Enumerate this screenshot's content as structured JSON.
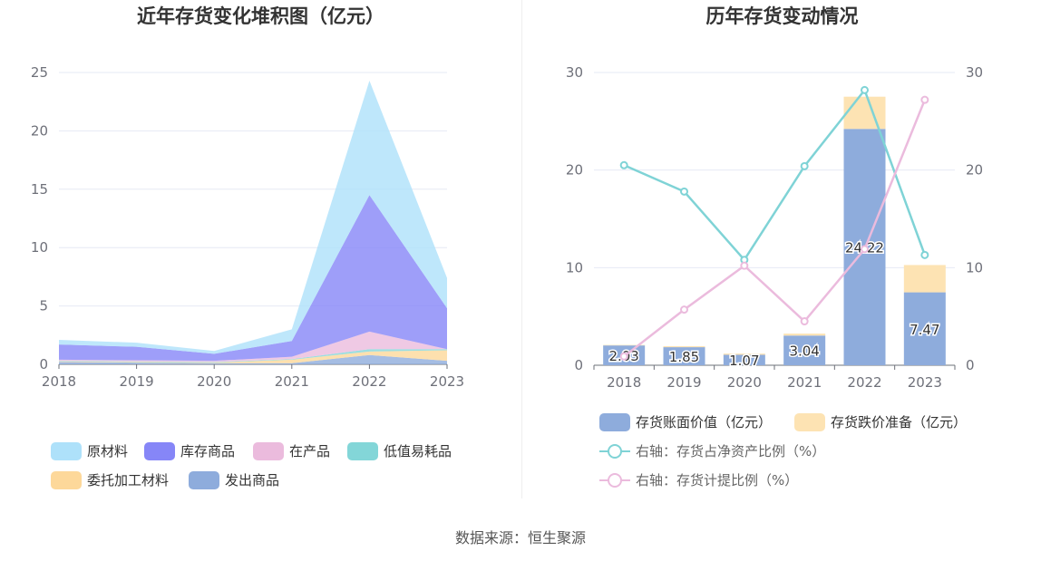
{
  "left_chart": {
    "title": "近年存货变化堆积图（亿元）",
    "chart_data": {
      "type": "area",
      "stacked": true,
      "x": [
        "2018",
        "2019",
        "2020",
        "2021",
        "2022",
        "2023"
      ],
      "ylim": [
        0,
        25
      ],
      "yticks": [
        0,
        5,
        10,
        15,
        20,
        25
      ],
      "grid": true,
      "legend_position": "bottom",
      "series": [
        {
          "name": "发出商品",
          "color": "#8eacdc",
          "values": [
            0.2,
            0.15,
            0.1,
            0.1,
            0.8,
            0.3
          ]
        },
        {
          "name": "委托加工材料",
          "color": "#fdd89a",
          "values": [
            0.05,
            0.05,
            0.05,
            0.3,
            0.3,
            0.9
          ]
        },
        {
          "name": "低值易耗品",
          "color": "#83d6d8",
          "values": [
            0.05,
            0.05,
            0.05,
            0.05,
            0.2,
            0.1
          ]
        },
        {
          "name": "在产品",
          "color": "#ebbbdd",
          "values": [
            0.1,
            0.1,
            0.1,
            0.2,
            1.5,
            0.0
          ]
        },
        {
          "name": "库存商品",
          "color": "#8686f7",
          "values": [
            1.3,
            1.15,
            0.6,
            1.35,
            11.7,
            3.5
          ]
        },
        {
          "name": "原材料",
          "color": "#aee1fa",
          "values": [
            0.4,
            0.35,
            0.25,
            1.0,
            9.8,
            2.6
          ]
        }
      ]
    },
    "legend": [
      {
        "label": "原材料",
        "color": "#aee1fa"
      },
      {
        "label": "库存商品",
        "color": "#8686f7"
      },
      {
        "label": "在产品",
        "color": "#ebbbdd"
      },
      {
        "label": "低值易耗品",
        "color": "#83d6d8"
      },
      {
        "label": "委托加工材料",
        "color": "#fdd89a"
      },
      {
        "label": "发出商品",
        "color": "#8eacdc"
      }
    ]
  },
  "right_chart": {
    "title": "历年存货变动情况",
    "chart_data": {
      "type": "bar",
      "stacked": true,
      "categories": [
        "2018",
        "2019",
        "2020",
        "2021",
        "2022",
        "2023"
      ],
      "ylim_left": [
        0,
        30
      ],
      "ylim_right": [
        0,
        30
      ],
      "yticks": [
        0,
        10,
        20,
        30
      ],
      "grid": true,
      "legend_position": "bottom",
      "series": [
        {
          "name": "存货账面价值（亿元）",
          "kind": "bar",
          "axis": "left",
          "color": "#8eacdc",
          "values": [
            2.03,
            1.85,
            1.07,
            3.04,
            24.22,
            7.47
          ],
          "labels": [
            "2.03",
            "1.85",
            "1.07",
            "3.04",
            "24.22",
            "7.47"
          ]
        },
        {
          "name": "存货跌价准备（亿元）",
          "kind": "bar",
          "axis": "left",
          "color": "#fde3b3",
          "values": [
            0.05,
            0.1,
            0.12,
            0.2,
            3.3,
            2.8
          ]
        },
        {
          "name": "右轴：存货占净资产比例（%）",
          "kind": "line",
          "axis": "right",
          "color": "#7fd3d6",
          "values": [
            20.5,
            17.8,
            10.8,
            20.4,
            28.2,
            11.3
          ]
        },
        {
          "name": "右轴：存货计提比例（%）",
          "kind": "line",
          "axis": "right",
          "color": "#ebbbdd",
          "values": [
            0.9,
            5.7,
            10.2,
            4.5,
            11.9,
            27.2
          ]
        }
      ]
    },
    "legend": [
      {
        "label": "存货账面价值（亿元）",
        "color": "#8eacdc",
        "kind": "box"
      },
      {
        "label": "存货跌价准备（亿元）",
        "color": "#fde3b3",
        "kind": "box"
      },
      {
        "label": "右轴：存货占净资产比例（%）",
        "color": "#7fd3d6",
        "kind": "line"
      },
      {
        "label": "右轴：存货计提比例（%）",
        "color": "#ebbbdd",
        "kind": "line"
      }
    ]
  },
  "footer": {
    "source": "数据来源：恒生聚源"
  }
}
